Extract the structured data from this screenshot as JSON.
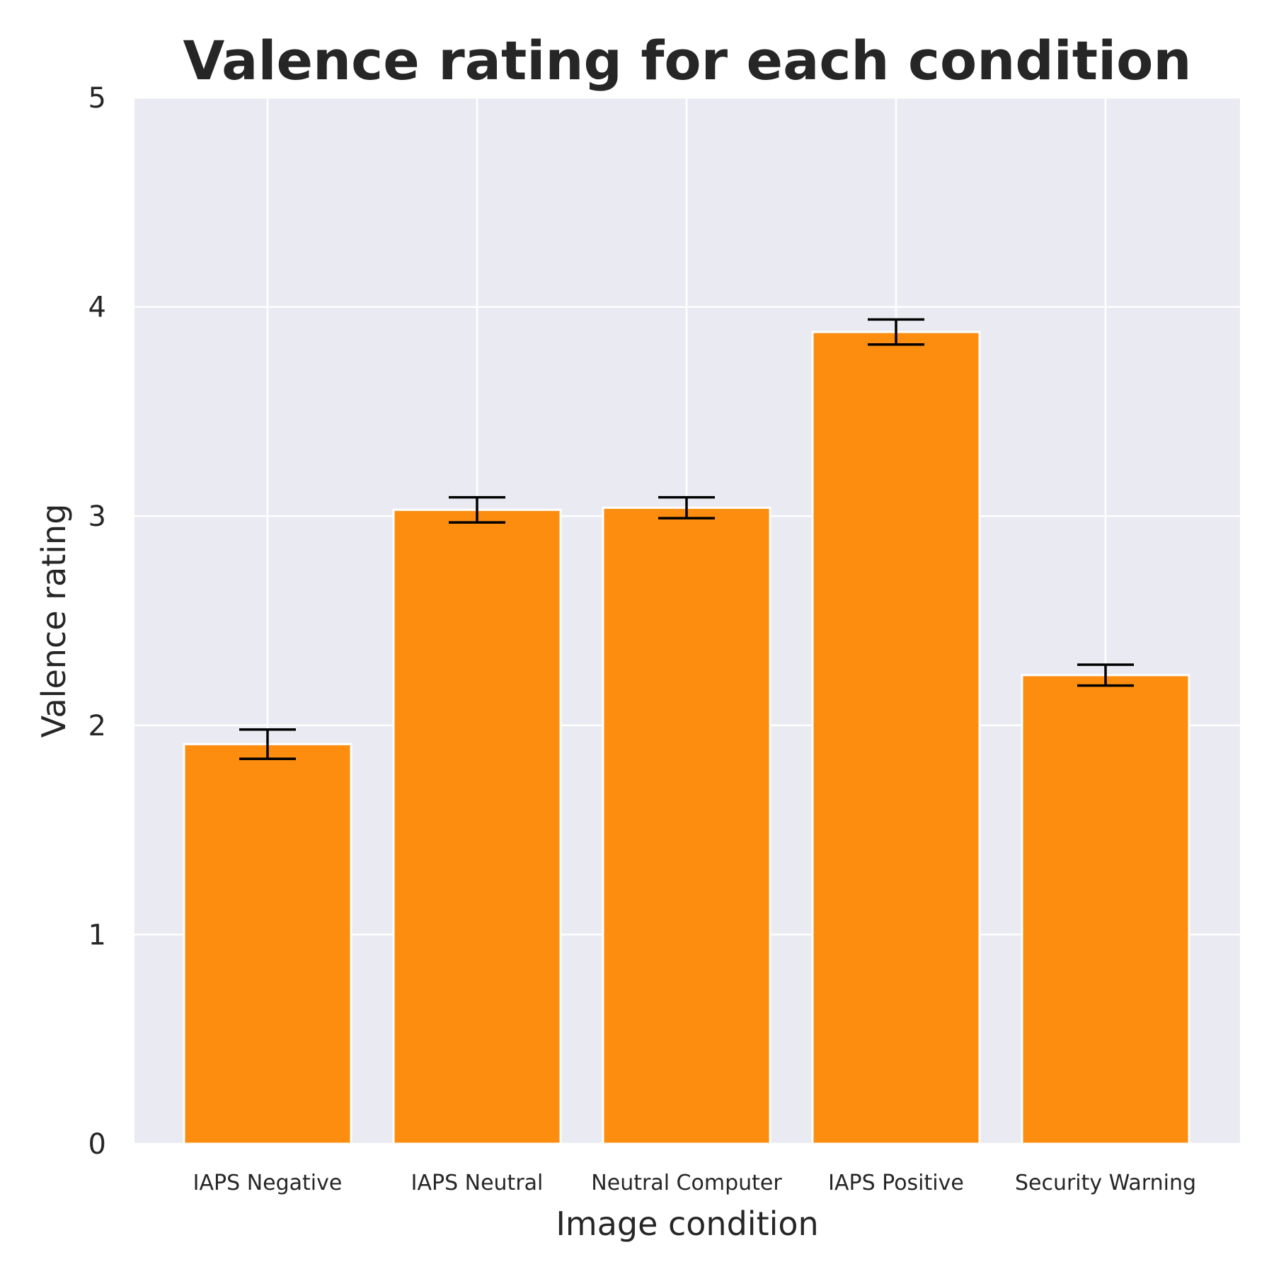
{
  "chart_data": {
    "type": "bar",
    "title": "Valence rating for each condition",
    "xlabel": "Image condition",
    "ylabel": "Valence rating",
    "categories": [
      "IAPS Negative",
      "IAPS Neutral",
      "Neutral Computer",
      "IAPS Positive",
      "Security Warning"
    ],
    "values": [
      1.91,
      3.03,
      3.04,
      3.88,
      2.24
    ],
    "errors": [
      0.07,
      0.06,
      0.05,
      0.06,
      0.05
    ],
    "ylim": [
      0,
      5
    ],
    "yticks": [
      "0",
      "1",
      "2",
      "3",
      "4",
      "5"
    ],
    "grid": true,
    "colors": {
      "bar": "#fc8d0f",
      "background": "#eaeaf2",
      "grid": "#ffffff",
      "error_bar": "#000000"
    }
  }
}
